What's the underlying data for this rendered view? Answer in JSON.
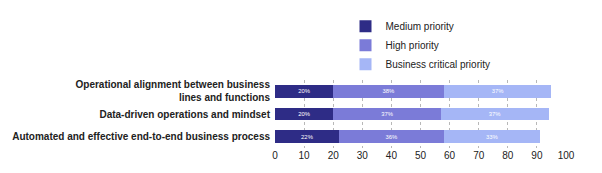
{
  "chart_data": {
    "type": "bar",
    "orientation": "horizontal",
    "stacked": true,
    "categories": [
      "Operational alignment between business lines and functions",
      "Data-driven operations and mindset",
      "Automated and effective end-to-end business process"
    ],
    "series": [
      {
        "name": "Medium priority",
        "color": "#2e2c86",
        "values": [
          20,
          20,
          22
        ],
        "value_labels": [
          "20%",
          "20%",
          "22%"
        ]
      },
      {
        "name": "High priority",
        "color": "#7b7bd8",
        "values": [
          38,
          37,
          36
        ],
        "value_labels": [
          "38%",
          "37%",
          "36%"
        ]
      },
      {
        "name": "Business critical priority",
        "color": "#a5b6f6",
        "values": [
          37,
          37,
          33
        ],
        "value_labels": [
          "37%",
          "37%",
          "33%"
        ]
      }
    ],
    "xlim": [
      0,
      100
    ],
    "xticks": [
      0,
      10,
      20,
      30,
      40,
      50,
      60,
      70,
      80,
      90,
      100
    ],
    "grid": true,
    "data_labels": true,
    "legend": "top"
  }
}
